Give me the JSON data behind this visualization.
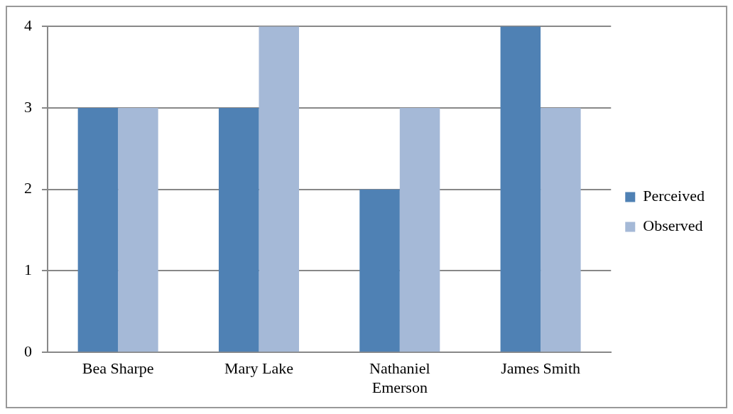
{
  "chart_data": {
    "type": "bar",
    "categories": [
      "Bea Sharpe",
      "Mary Lake",
      "Nathaniel Emerson",
      "James Smith"
    ],
    "series": [
      {
        "name": "Perceived",
        "color": "#4f81b4",
        "values": [
          3,
          3,
          2,
          4
        ]
      },
      {
        "name": "Observed",
        "color": "#a5b9d7",
        "values": [
          3,
          4,
          3,
          3
        ]
      }
    ],
    "ylim": [
      0,
      4
    ],
    "yticks": [
      0,
      1,
      2,
      3,
      4
    ],
    "grid": "y",
    "legend": "right"
  }
}
